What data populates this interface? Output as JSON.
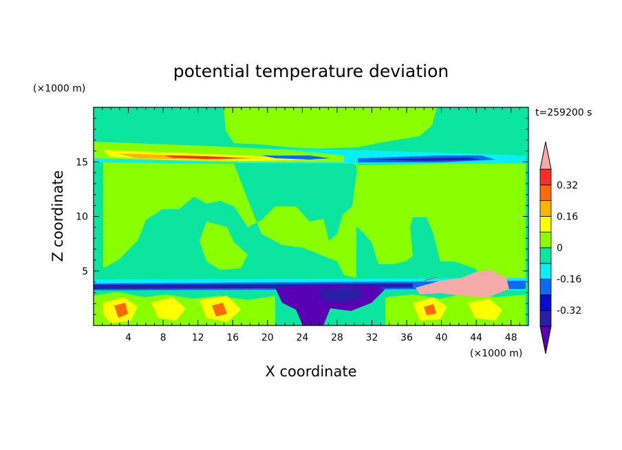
{
  "chart_data": {
    "type": "heatmap",
    "title": "potential temperature deviation",
    "xlabel": "X coordinate",
    "ylabel": "Z coordinate",
    "x_unit": "(×1000 m)",
    "y_unit": "(×1000 m)",
    "time_label": "t=259200 s",
    "xlim": [
      0,
      50
    ],
    "ylim": [
      0,
      20
    ],
    "x_ticks": [
      4,
      8,
      12,
      16,
      20,
      24,
      28,
      32,
      36,
      40,
      44,
      48
    ],
    "y_ticks": [
      5,
      10,
      15
    ],
    "colorbar": {
      "levels": [
        -0.4,
        -0.32,
        -0.24,
        -0.16,
        -0.08,
        0.0,
        0.08,
        0.16,
        0.24,
        0.32,
        0.4
      ],
      "tick_labels": [
        "0.32",
        "0.16",
        "0",
        "-0.16",
        "-0.32"
      ],
      "tick_values": [
        0.32,
        0.16,
        0.0,
        -0.16,
        -0.32
      ],
      "colors_low_to_high": [
        "#5a00b4",
        "#2a1ea6",
        "#0a0ad2",
        "#0a6af5",
        "#0aeef5",
        "#0ae6a0",
        "#8aff00",
        "#ffff00",
        "#ffb400",
        "#ff6a00",
        "#ff2a2a",
        "#f5aaaa"
      ],
      "extend": "both"
    }
  }
}
